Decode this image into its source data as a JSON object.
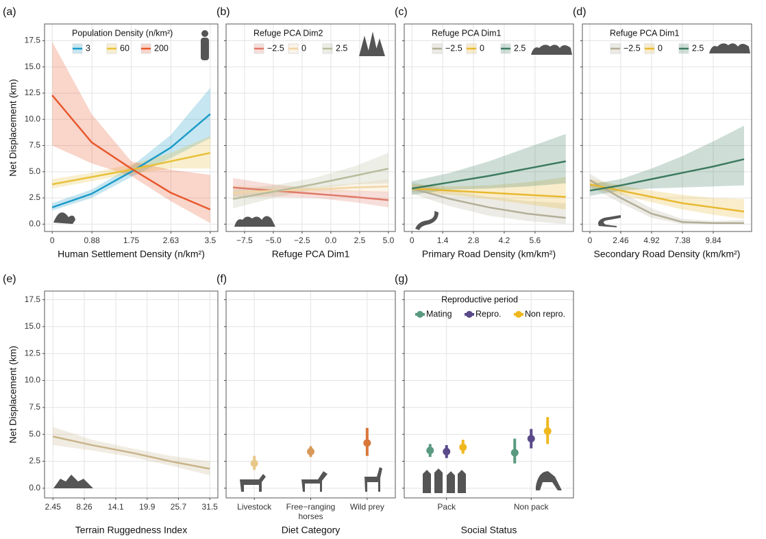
{
  "chart_data": [
    {
      "type": "line",
      "tag": "(a)",
      "ylabel": "Net Displacement (km)",
      "xlabel": "Human Settlement Density (n/km²)",
      "legend_title": "Population Density (n/km²)",
      "x": [
        0,
        0.875,
        1.75,
        2.625,
        3.5
      ],
      "series": [
        {
          "name": "3",
          "color": "#1a9bc8",
          "values": [
            1.6,
            2.9,
            5.0,
            7.3,
            10.5
          ],
          "lower": [
            1.3,
            2.5,
            4.5,
            6.3,
            8.2
          ],
          "upper": [
            2.0,
            3.3,
            5.5,
            8.5,
            13.0
          ]
        },
        {
          "name": "60",
          "color": "#e8c13a",
          "values": [
            3.8,
            4.5,
            5.2,
            6.0,
            6.8
          ],
          "lower": [
            3.4,
            4.1,
            4.8,
            5.3,
            5.3
          ],
          "upper": [
            4.3,
            4.9,
            5.7,
            6.8,
            8.4
          ]
        },
        {
          "name": "200",
          "color": "#e8582d",
          "values": [
            12.3,
            7.8,
            5.3,
            3.0,
            1.4
          ],
          "lower": [
            7.5,
            5.8,
            4.6,
            2.2,
            0.1
          ],
          "upper": [
            17.4,
            10.5,
            6.0,
            5.2,
            4.7
          ]
        }
      ],
      "xlim": [
        -0.17,
        3.67
      ],
      "xticks": [
        0,
        0.88,
        1.75,
        2.63,
        3.5
      ],
      "ylim": [
        -0.7,
        19.1
      ],
      "yticks": [
        {
          "value": 0,
          "label": "0.0"
        },
        2.5,
        {
          "value": 5,
          "label": "5.0"
        },
        7.5,
        {
          "value": 10,
          "label": "10.0"
        },
        12.5,
        {
          "value": 15,
          "label": "15.0"
        },
        17.5
      ]
    },
    {
      "type": "line",
      "tag": "(b)",
      "xlabel": "Refuge PCA Dim1",
      "legend_title": "Refuge PCA Dim2",
      "x": [
        -8.5,
        -5,
        -1.5,
        2,
        5
      ],
      "series": [
        {
          "name": "−2.5",
          "color": "#e07a6a",
          "values": [
            3.5,
            3.2,
            2.9,
            2.6,
            2.3
          ],
          "lower": [
            2.6,
            2.6,
            2.5,
            2.1,
            1.6
          ],
          "upper": [
            4.4,
            3.8,
            3.4,
            3.2,
            3.1
          ]
        },
        {
          "name": "0",
          "color": "#f1d5a3",
          "values": [
            3.0,
            3.2,
            3.3,
            3.5,
            3.6
          ],
          "lower": [
            2.4,
            2.8,
            3.0,
            3.1,
            3.0
          ],
          "upper": [
            3.7,
            3.6,
            3.6,
            3.9,
            4.3
          ]
        },
        {
          "name": "2.5",
          "color": "#b8bc9c",
          "values": [
            2.4,
            3.1,
            3.8,
            4.6,
            5.3
          ],
          "lower": [
            1.5,
            2.5,
            3.3,
            3.8,
            3.9
          ],
          "upper": [
            3.3,
            3.7,
            4.4,
            5.5,
            6.8
          ]
        }
      ],
      "xlim": [
        -9.1,
        5.6
      ],
      "xticks": [
        {
          "value": -7.5,
          "label": "−7.5"
        },
        {
          "value": -5,
          "label": "−5.0"
        },
        {
          "value": -2.5,
          "label": "−2.5"
        },
        {
          "value": 0,
          "label": "0.0"
        },
        2.5,
        {
          "value": 5,
          "label": "5.0"
        }
      ],
      "ylim": [
        -0.7,
        19.1
      ],
      "yticks": [
        0,
        2.5,
        5,
        7.5,
        10,
        12.5,
        15,
        17.5
      ]
    },
    {
      "type": "line",
      "tag": "(c)",
      "xlabel": "Primary Road Density (km/km²)",
      "legend_title": "Refuge PCA Dim1",
      "x": [
        0,
        1.75,
        3.5,
        5.25,
        7
      ],
      "series": [
        {
          "name": "−2.5",
          "color": "#b3ae98",
          "values": [
            3.4,
            2.4,
            1.6,
            1.0,
            0.6
          ],
          "lower": [
            2.9,
            1.7,
            0.8,
            0.3,
            0.0
          ],
          "upper": [
            4.0,
            3.2,
            2.6,
            2.2,
            2.0
          ]
        },
        {
          "name": "0",
          "color": "#e8b830",
          "values": [
            3.4,
            3.2,
            3.0,
            2.8,
            2.6
          ],
          "lower": [
            3.1,
            2.8,
            2.4,
            1.9,
            1.4
          ],
          "upper": [
            3.8,
            3.6,
            3.7,
            4.0,
            4.5
          ]
        },
        {
          "name": "2.5",
          "color": "#3d7a5f",
          "values": [
            3.4,
            4.0,
            4.6,
            5.3,
            6.0
          ],
          "lower": [
            2.8,
            3.3,
            3.4,
            3.6,
            3.9
          ],
          "upper": [
            4.1,
            4.9,
            6.0,
            7.3,
            8.6
          ]
        }
      ],
      "xlim": [
        -0.35,
        7.35
      ],
      "xticks": [
        0,
        1.4,
        2.8,
        4.2,
        5.6
      ],
      "ylim": [
        -0.7,
        19.1
      ],
      "yticks": [
        0,
        2.5,
        5,
        7.5,
        10,
        12.5,
        15,
        17.5
      ]
    },
    {
      "type": "line",
      "tag": "(d)",
      "xlabel": "Secondary Road Density (km/km²)",
      "legend_title": "Refuge PCA Dim1",
      "x": [
        0,
        2.46,
        4.92,
        7.38,
        9.84,
        12.3
      ],
      "series": [
        {
          "name": "−2.5",
          "color": "#b3ae98",
          "values": [
            4.2,
            2.5,
            1.0,
            0.2,
            0.1,
            0.1
          ],
          "lower": [
            3.6,
            2.0,
            0.6,
            0.0,
            0.0,
            0.0
          ],
          "upper": [
            4.8,
            3.1,
            1.5,
            0.5,
            0.3,
            0.4
          ]
        },
        {
          "name": "0",
          "color": "#e8b830",
          "values": [
            3.8,
            3.2,
            2.6,
            2.0,
            1.6,
            1.2
          ],
          "lower": [
            3.4,
            2.8,
            2.1,
            1.4,
            0.9,
            0.5
          ],
          "upper": [
            4.3,
            3.7,
            3.2,
            2.8,
            2.5,
            2.4
          ]
        },
        {
          "name": "2.5",
          "color": "#3d7a5f",
          "values": [
            3.2,
            3.7,
            4.3,
            4.9,
            5.5,
            6.2
          ],
          "lower": [
            2.7,
            3.2,
            3.4,
            3.5,
            3.6,
            3.7
          ],
          "upper": [
            3.8,
            4.3,
            5.3,
            6.5,
            7.9,
            9.4
          ]
        }
      ],
      "xlim": [
        -0.6,
        12.9
      ],
      "xticks": [
        0,
        2.46,
        4.92,
        7.38,
        9.84
      ],
      "ylim": [
        -0.7,
        19.1
      ],
      "yticks": [
        0,
        2.5,
        5,
        7.5,
        10,
        12.5,
        15,
        17.5
      ]
    },
    {
      "type": "line",
      "tag": "(e)",
      "ylabel": "Net Displacement (km)",
      "xlabel": "Terrain Ruggedness Index",
      "x": [
        2.45,
        9.7,
        17,
        24.2,
        31.5
      ],
      "series": [
        {
          "color": "#c8b48a",
          "values": [
            4.8,
            4.0,
            3.3,
            2.5,
            1.8
          ],
          "lower": [
            4.0,
            3.5,
            2.9,
            2.1,
            1.2
          ],
          "upper": [
            5.7,
            4.5,
            3.7,
            3.0,
            2.5
          ]
        }
      ],
      "xlim": [
        0.9,
        33.0
      ],
      "xticks": [
        2.45,
        8.26,
        14.1,
        19.9,
        25.7,
        31.5
      ],
      "ylim": [
        -0.9,
        18.3
      ],
      "yticks": [
        {
          "value": 0,
          "label": "0.0"
        },
        2.5,
        {
          "value": 5,
          "label": "5.0"
        },
        7.5,
        {
          "value": 10,
          "label": "10.0"
        },
        12.5,
        {
          "value": 15,
          "label": "15.0"
        },
        17.5
      ]
    },
    {
      "type": "errorbar",
      "tag": "(f)",
      "xlabel": "Diet Category",
      "categories": [
        "Livestock",
        "Free−ranging horses",
        "Wild prey"
      ],
      "series": [
        {
          "colors": [
            "#e8c88a",
            "#d89a5a",
            "#d9773a"
          ],
          "values": [
            2.3,
            3.4,
            4.2
          ],
          "lower": [
            1.7,
            2.9,
            3.0
          ],
          "upper": [
            3.0,
            3.9,
            5.6
          ]
        }
      ],
      "ylim": [
        -0.9,
        18.3
      ],
      "yticks": [
        0,
        2.5,
        5,
        7.5,
        10,
        12.5,
        15,
        17.5
      ]
    },
    {
      "type": "errorbar",
      "tag": "(g)",
      "xlabel": "Social Status",
      "legend_title": "Reproductive period",
      "categories": [
        "Pack",
        "Non pack"
      ],
      "series": [
        {
          "name": "Mating",
          "color": "#5a9a80",
          "values": [
            3.5,
            3.3
          ],
          "lower": [
            2.9,
            2.3
          ],
          "upper": [
            4.1,
            4.6
          ]
        },
        {
          "name": "Repro.",
          "color": "#5a4a8a",
          "values": [
            3.4,
            4.6
          ],
          "lower": [
            2.8,
            3.7
          ],
          "upper": [
            4.0,
            5.5
          ]
        },
        {
          "name": "Non repro.",
          "color": "#f0b820",
          "values": [
            3.8,
            5.3
          ],
          "lower": [
            3.2,
            4.1
          ],
          "upper": [
            4.5,
            6.6
          ]
        }
      ],
      "ylim": [
        -0.9,
        18.3
      ],
      "yticks": [
        0,
        2.5,
        5,
        7.5,
        10,
        12.5,
        15,
        17.5
      ]
    }
  ]
}
